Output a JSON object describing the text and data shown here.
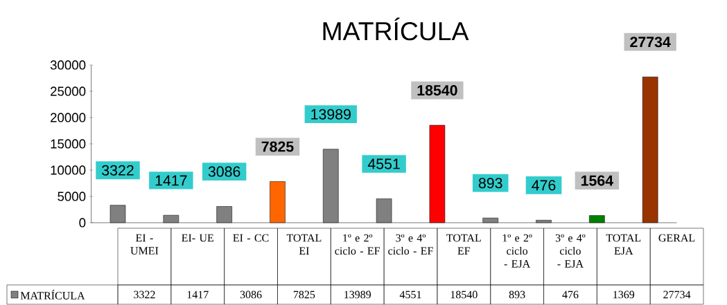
{
  "chart_data": {
    "type": "bar",
    "title": "MATRÍCULA",
    "categories": [
      "EI - UMEI",
      "EI- UE",
      "EI - CC",
      "TOTAL EI",
      "1º e 2º ciclo - EF",
      "3º e 4º ciclo - EF",
      "TOTAL EF",
      "1º e 2º ciclo - EJA",
      "3º e 4º ciclo - EJA",
      "TOTAL EJA",
      "GERAL"
    ],
    "series": [
      {
        "name": "MATRÍCULA",
        "color": "#808080",
        "colors": [
          "#808080",
          "#808080",
          "#808080",
          "#ff6600",
          "#808080",
          "#808080",
          "#ff0000",
          "#808080",
          "#808080",
          "#008000",
          "#993300"
        ],
        "values": [
          3322,
          1417,
          3086,
          7825,
          13989,
          4551,
          18540,
          893,
          476,
          1369,
          27734
        ]
      }
    ],
    "annotations": [
      "3322",
      "1417",
      "3086",
      "7825",
      "13989",
      "4551",
      "18540",
      "893",
      "476",
      "1564",
      "27734"
    ],
    "ylim": [
      0,
      30000
    ],
    "yticks": [
      0,
      5000,
      10000,
      15000,
      20000,
      25000,
      30000
    ],
    "data_labels": true,
    "legend": "bottom",
    "grid": false
  }
}
